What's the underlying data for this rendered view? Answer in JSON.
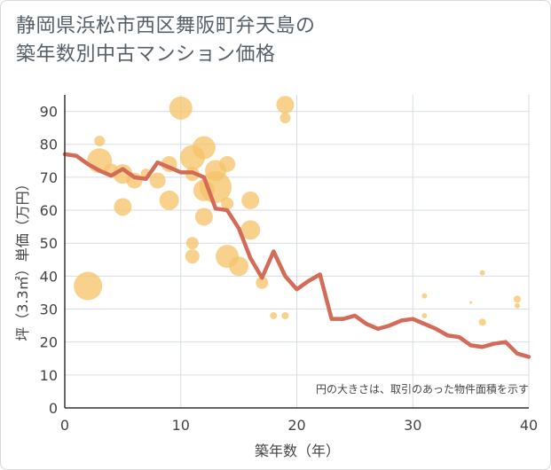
{
  "title": {
    "line1": "静岡県浜松市西区舞阪町弁天島の",
    "line2": "築年数別中古マンション価格"
  },
  "chart_data": {
    "type": "scatter",
    "xlabel": "築年数（年）",
    "ylabel": "坪（3.3㎡）単価（万円）",
    "note": "円の大きさは、取引のあった物件面積を示す",
    "xlim": [
      0,
      40
    ],
    "ylim": [
      0,
      95
    ],
    "x_ticks": [
      0,
      10,
      20,
      30,
      40
    ],
    "y_ticks": [
      0,
      10,
      20,
      30,
      40,
      50,
      60,
      70,
      80,
      90
    ],
    "grid": true,
    "colors": {
      "bubble": "#f5c167",
      "line": "#d46a58",
      "grid": "#d6dde6",
      "axis": "#333333"
    },
    "bubbles": [
      {
        "x": 2,
        "y": 37,
        "r": 16
      },
      {
        "x": 3,
        "y": 75,
        "r": 14
      },
      {
        "x": 3,
        "y": 81,
        "r": 6
      },
      {
        "x": 4,
        "y": 72,
        "r": 8
      },
      {
        "x": 5,
        "y": 71,
        "r": 11
      },
      {
        "x": 5,
        "y": 61,
        "r": 10
      },
      {
        "x": 6,
        "y": 69,
        "r": 9
      },
      {
        "x": 7,
        "y": 71,
        "r": 6
      },
      {
        "x": 8,
        "y": 69,
        "r": 9
      },
      {
        "x": 9,
        "y": 74,
        "r": 9
      },
      {
        "x": 9,
        "y": 63,
        "r": 11
      },
      {
        "x": 10,
        "y": 91,
        "r": 13
      },
      {
        "x": 11,
        "y": 76,
        "r": 14
      },
      {
        "x": 11,
        "y": 71,
        "r": 8
      },
      {
        "x": 11,
        "y": 50,
        "r": 7
      },
      {
        "x": 11,
        "y": 46,
        "r": 8
      },
      {
        "x": 12,
        "y": 79,
        "r": 13
      },
      {
        "x": 12,
        "y": 66,
        "r": 12
      },
      {
        "x": 12,
        "y": 58,
        "r": 10
      },
      {
        "x": 13,
        "y": 72,
        "r": 12
      },
      {
        "x": 13,
        "y": 67,
        "r": 18
      },
      {
        "x": 14,
        "y": 74,
        "r": 9
      },
      {
        "x": 14,
        "y": 62,
        "r": 7
      },
      {
        "x": 14,
        "y": 46,
        "r": 13
      },
      {
        "x": 15,
        "y": 43,
        "r": 11
      },
      {
        "x": 16,
        "y": 63,
        "r": 10
      },
      {
        "x": 16,
        "y": 54,
        "r": 11
      },
      {
        "x": 17,
        "y": 38,
        "r": 7
      },
      {
        "x": 18,
        "y": 28,
        "r": 4
      },
      {
        "x": 19,
        "y": 92,
        "r": 10
      },
      {
        "x": 19,
        "y": 88,
        "r": 6
      },
      {
        "x": 19,
        "y": 28,
        "r": 4
      },
      {
        "x": 31,
        "y": 34,
        "r": 3
      },
      {
        "x": 31,
        "y": 28,
        "r": 3
      },
      {
        "x": 35,
        "y": 32,
        "r": 1.5
      },
      {
        "x": 36,
        "y": 41,
        "r": 3
      },
      {
        "x": 36,
        "y": 26,
        "r": 4
      },
      {
        "x": 39,
        "y": 33,
        "r": 4
      },
      {
        "x": 39,
        "y": 31,
        "r": 3
      }
    ],
    "line": {
      "x": [
        0,
        1,
        2,
        3,
        4,
        5,
        6,
        7,
        8,
        9,
        10,
        11,
        12,
        13,
        14,
        15,
        16,
        17,
        18,
        19,
        20,
        21,
        22,
        23,
        24,
        25,
        26,
        27,
        28,
        29,
        30,
        31,
        32,
        33,
        34,
        35,
        36,
        37,
        38,
        39,
        40
      ],
      "y": [
        77,
        76.5,
        74,
        72,
        70.5,
        72.5,
        70,
        69.5,
        74.5,
        73,
        71.5,
        71.5,
        70,
        60.5,
        60,
        54.5,
        45.5,
        39.5,
        47.5,
        40,
        36,
        38.5,
        40.5,
        27,
        27,
        28,
        25.5,
        24,
        25,
        26.5,
        27,
        25.5,
        24,
        22,
        21.5,
        19,
        18.5,
        19.5,
        20,
        16.5,
        15.5
      ]
    }
  }
}
